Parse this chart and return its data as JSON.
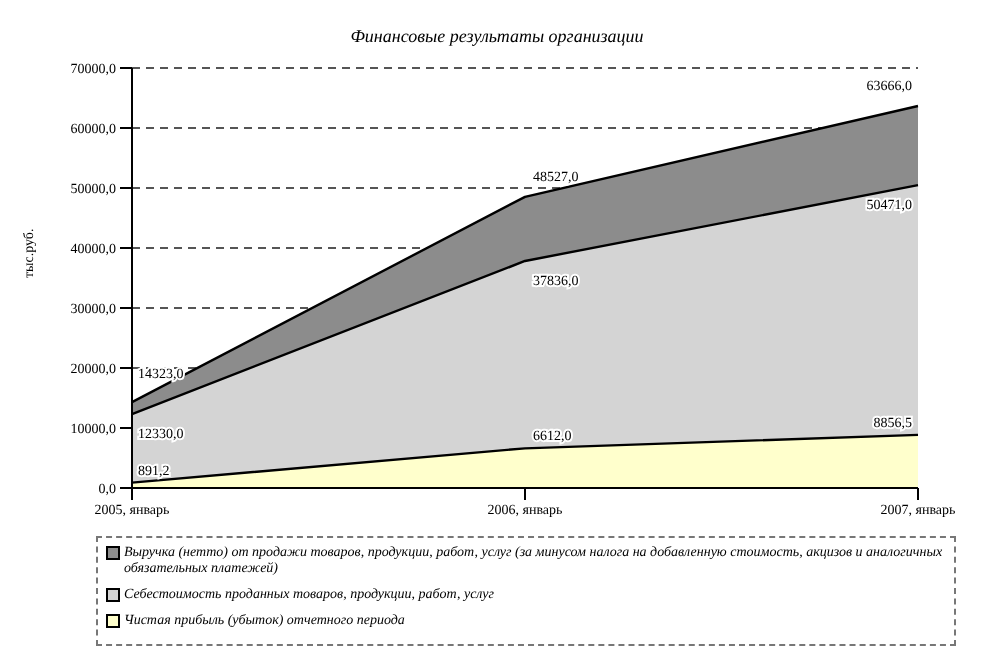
{
  "chart_data": {
    "type": "area",
    "title": "Финансовые результаты организации",
    "ylabel": "тыс.руб.",
    "categories": [
      "2005, январь",
      "2006, январь",
      "2007, январь"
    ],
    "series": [
      {
        "name": "Выручка (нетто) от продажи товаров, продукции, работ, услуг (за минусом налога на добавленную стоимость, акцизов и аналогичных обязательных платежей)",
        "color": "#8c8c8c",
        "values": [
          14323,
          48527,
          63666
        ],
        "value_labels": [
          "14323,0",
          "48527,0",
          "63666,0"
        ]
      },
      {
        "name": "Себестоимость проданных товаров, продукции, работ, услуг",
        "color": "#d4d4d4",
        "values": [
          12330,
          37836,
          50471
        ],
        "value_labels": [
          "12330,0",
          "37836,0",
          "50471,0"
        ]
      },
      {
        "name": "Чистая прибыль (убыток) отчетного периода",
        "color": "#ffffcc",
        "values": [
          891.2,
          6612,
          8856.5
        ],
        "value_labels": [
          "891,2",
          "6612,0",
          "8856,5"
        ]
      }
    ],
    "ylim": [
      0,
      70000
    ],
    "yticks": [
      {
        "value": 0,
        "label": "0,0"
      },
      {
        "value": 10000,
        "label": "10000,0"
      },
      {
        "value": 20000,
        "label": "20000,0"
      },
      {
        "value": 30000,
        "label": "30000,0"
      },
      {
        "value": 40000,
        "label": "40000,0"
      },
      {
        "value": 50000,
        "label": "50000,0"
      },
      {
        "value": 60000,
        "label": "60000,0"
      },
      {
        "value": 70000,
        "label": "70000,0"
      }
    ],
    "grid": "y",
    "legend": "bottom"
  }
}
